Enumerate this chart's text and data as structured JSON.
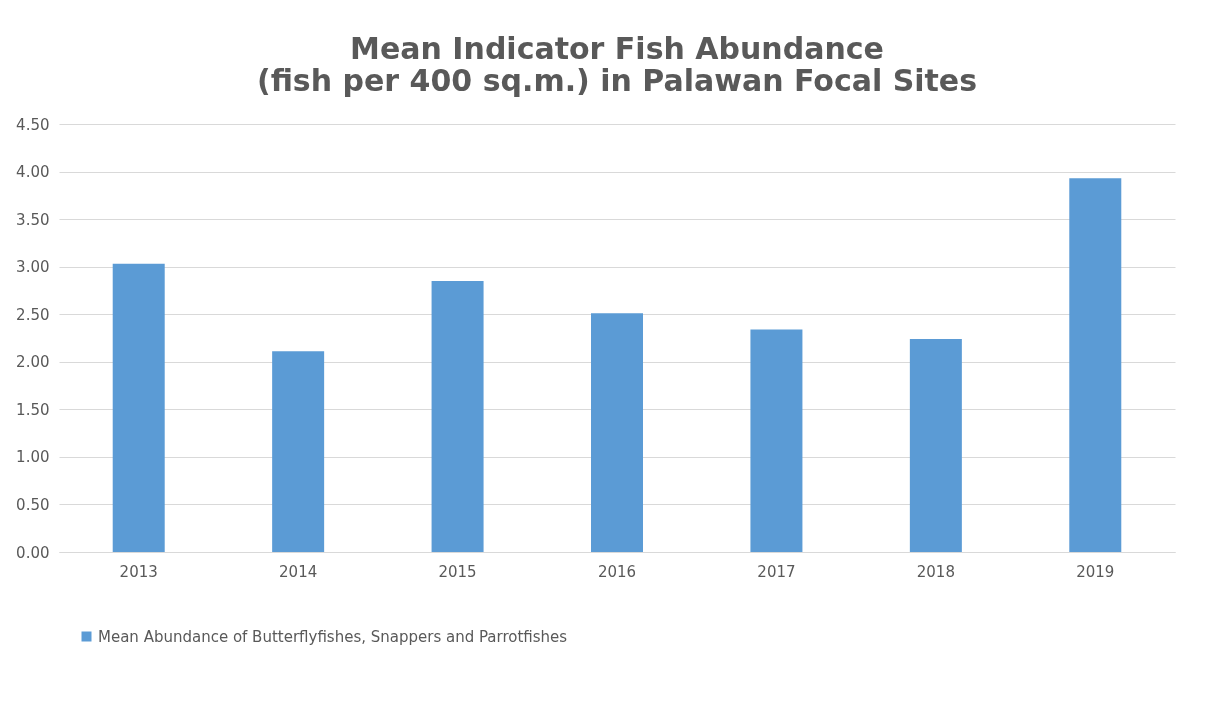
{
  "chart_data": {
    "type": "bar",
    "title": "Mean Indicator Fish Abundance\n(fish per 400 sq.m.) in Palawan Focal Sites",
    "categories": [
      "2013",
      "2014",
      "2015",
      "2016",
      "2017",
      "2018",
      "2019"
    ],
    "series": [
      {
        "name": "Mean Abundance of Butterflyfishes, Snappers and Parrotfishes",
        "color": "#5b9bd5",
        "values": [
          3.03,
          2.11,
          2.85,
          2.51,
          2.34,
          2.24,
          3.93
        ]
      }
    ],
    "ylim": [
      0,
      4.5
    ],
    "yticks": [
      {
        "value": 0,
        "label": "0.00"
      },
      {
        "value": 0.5,
        "label": "0.50"
      },
      {
        "value": 1,
        "label": "1.00"
      },
      {
        "value": 1.5,
        "label": "1.50"
      },
      {
        "value": 2,
        "label": "2.00"
      },
      {
        "value": 2.5,
        "label": "2.50"
      },
      {
        "value": 3,
        "label": "3.00"
      },
      {
        "value": 3.5,
        "label": "3.50"
      },
      {
        "value": 4,
        "label": "4.00"
      },
      {
        "value": 4.5,
        "label": "4.50"
      }
    ],
    "grid": "y",
    "legend": "bottom"
  }
}
